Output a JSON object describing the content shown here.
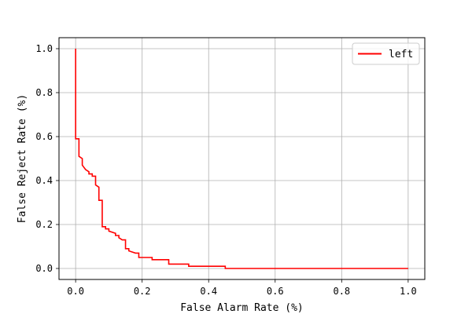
{
  "chart_data": {
    "type": "line",
    "title": "",
    "xlabel": "False Alarm Rate (%)",
    "ylabel": "False Reject Rate (%)",
    "xlim": [
      -0.05,
      1.05
    ],
    "ylim": [
      -0.05,
      1.05
    ],
    "xticks": [
      "0.0",
      "0.2",
      "0.4",
      "0.6",
      "0.8",
      "1.0"
    ],
    "yticks": [
      "0.0",
      "0.2",
      "0.4",
      "0.6",
      "0.8",
      "1.0"
    ],
    "xtick_values": [
      0.0,
      0.2,
      0.4,
      0.6,
      0.8,
      1.0
    ],
    "ytick_values": [
      0.0,
      0.2,
      0.4,
      0.6,
      0.8,
      1.0
    ],
    "grid": true,
    "legend_position": "top-right",
    "series": [
      {
        "name": "left",
        "color": "#ff0000",
        "x": [
          0.0,
          0.0,
          0.01,
          0.01,
          0.02,
          0.02,
          0.025,
          0.03,
          0.04,
          0.04,
          0.05,
          0.05,
          0.06,
          0.06,
          0.07,
          0.07,
          0.08,
          0.08,
          0.09,
          0.09,
          0.1,
          0.1,
          0.12,
          0.12,
          0.13,
          0.13,
          0.14,
          0.15,
          0.15,
          0.16,
          0.16,
          0.18,
          0.19,
          0.19,
          0.23,
          0.23,
          0.28,
          0.28,
          0.34,
          0.34,
          0.45,
          0.45,
          1.0
        ],
        "y": [
          1.0,
          0.59,
          0.59,
          0.51,
          0.5,
          0.47,
          0.46,
          0.45,
          0.44,
          0.43,
          0.43,
          0.42,
          0.42,
          0.38,
          0.37,
          0.31,
          0.31,
          0.19,
          0.19,
          0.18,
          0.18,
          0.17,
          0.16,
          0.15,
          0.15,
          0.14,
          0.13,
          0.13,
          0.09,
          0.09,
          0.08,
          0.07,
          0.07,
          0.05,
          0.05,
          0.04,
          0.04,
          0.02,
          0.02,
          0.01,
          0.01,
          0.0,
          0.0
        ]
      }
    ]
  }
}
